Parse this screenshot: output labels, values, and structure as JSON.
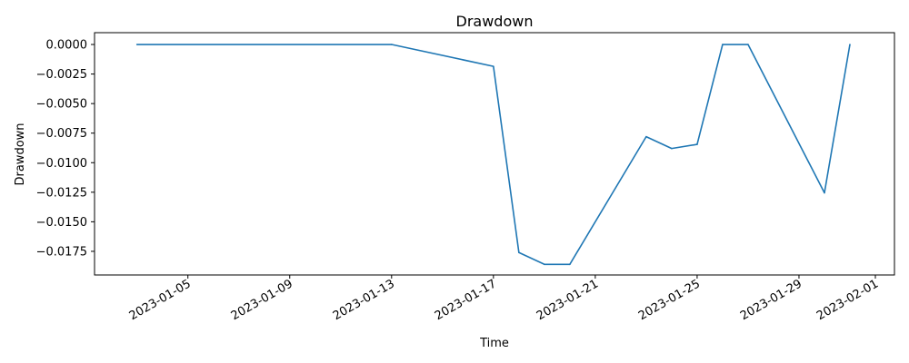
{
  "chart_data": {
    "type": "line",
    "title": "Drawdown",
    "xlabel": "Time",
    "ylabel": "Drawdown",
    "grid": false,
    "legend": "none",
    "color": "#1f77b4",
    "xlim": [
      "2023-01-01 08:00",
      "2023-02-01 18:00"
    ],
    "ylim": [
      -0.0195,
      0.001
    ],
    "x_ticks": [
      "2023-01-05",
      "2023-01-09",
      "2023-01-13",
      "2023-01-17",
      "2023-01-21",
      "2023-01-25",
      "2023-01-29",
      "2023-02-01"
    ],
    "y_ticks": [
      {
        "value": 0.0,
        "label": "0.0000"
      },
      {
        "value": -0.0025,
        "label": "−0.0025"
      },
      {
        "value": -0.005,
        "label": "−0.0050"
      },
      {
        "value": -0.0075,
        "label": "−0.0075"
      },
      {
        "value": -0.01,
        "label": "−0.0100"
      },
      {
        "value": -0.0125,
        "label": "−0.0125"
      },
      {
        "value": -0.015,
        "label": "−0.0150"
      },
      {
        "value": -0.0175,
        "label": "−0.0175"
      }
    ],
    "x": [
      "2023-01-03",
      "2023-01-13",
      "2023-01-17",
      "2023-01-18",
      "2023-01-19",
      "2023-01-20",
      "2023-01-23",
      "2023-01-24",
      "2023-01-25",
      "2023-01-26",
      "2023-01-27",
      "2023-01-30",
      "2023-01-31"
    ],
    "values": [
      0.0,
      0.0,
      -0.00185,
      -0.0176,
      -0.0186,
      -0.0186,
      -0.0078,
      -0.0088,
      -0.00845,
      0.0,
      0.0,
      -0.01255,
      0.0
    ]
  }
}
